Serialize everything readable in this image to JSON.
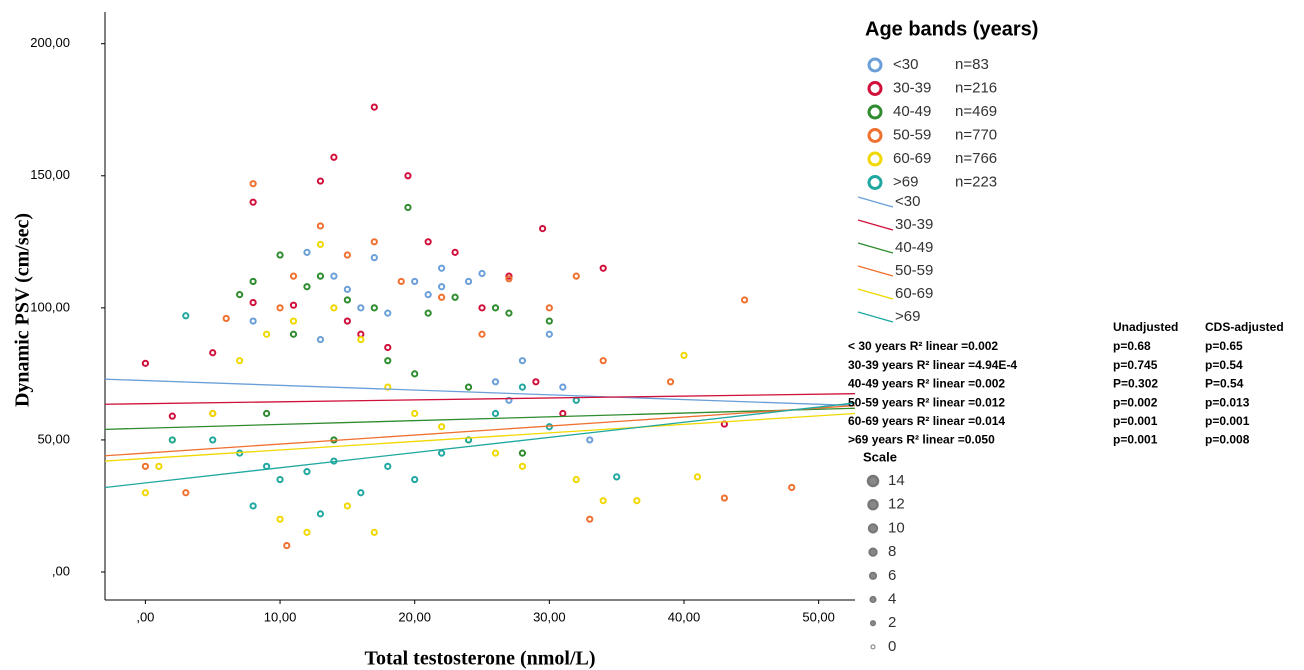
{
  "chart_data": {
    "type": "scatter",
    "y_label": "Dynamic PSV (cm/sec)",
    "x_label": "Total testosterone (nmol/L)",
    "xlim": [
      -3,
      52.7
    ],
    "ylim": [
      -10.6,
      212
    ],
    "xticks": [
      {
        "value": 0,
        "label": ",00"
      },
      {
        "value": 10,
        "label": "10,00"
      },
      {
        "value": 20,
        "label": "20,00"
      },
      {
        "value": 30,
        "label": "30,00"
      },
      {
        "value": 40,
        "label": "40,00"
      },
      {
        "value": 50,
        "label": "50,00"
      }
    ],
    "yticks": [
      {
        "value": 0,
        "label": ",00"
      },
      {
        "value": 50,
        "label": "50,00"
      },
      {
        "value": 100,
        "label": "100,00"
      },
      {
        "value": 150,
        "label": "150,00"
      },
      {
        "value": 200,
        "label": "200,00"
      }
    ],
    "legend_title": "Age bands (years)",
    "series": [
      {
        "name": "<30",
        "n_label": "n=83",
        "color": "#6a9fd8",
        "x": [
          12,
          14,
          16,
          17,
          20,
          22,
          25,
          26,
          28,
          30,
          31,
          33,
          8,
          15,
          24,
          22,
          18,
          27,
          21,
          13
        ],
        "y": [
          121,
          112,
          100,
          119,
          110,
          115,
          113,
          72,
          80,
          90,
          70,
          50,
          95,
          107,
          110,
          108,
          98,
          65,
          105,
          88
        ],
        "fit": {
          "x": [
            -3,
            52.7
          ],
          "y": [
            73,
            63
          ]
        }
      },
      {
        "name": "30-39",
        "n_label": "n=216",
        "color": "#d0103a",
        "x": [
          0,
          5,
          8,
          13,
          14,
          17,
          19.5,
          21,
          23,
          29.5,
          34,
          8,
          11,
          16,
          18,
          25,
          27,
          29,
          31,
          43,
          15,
          2
        ],
        "y": [
          79,
          83,
          140,
          148,
          157,
          176,
          150,
          125,
          121,
          130,
          115,
          102,
          101,
          90,
          85,
          100,
          112,
          72,
          60,
          56,
          95,
          59
        ],
        "fit": {
          "x": [
            -3,
            52.7
          ],
          "y": [
            63.5,
            67.5
          ]
        }
      },
      {
        "name": "40-49",
        "n_label": "n=469",
        "color": "#2e8b2e",
        "x": [
          7,
          8,
          10,
          12,
          13,
          15,
          17,
          19.5,
          21,
          23,
          26,
          27,
          30,
          11,
          18,
          24,
          9,
          14,
          20,
          28
        ],
        "y": [
          105,
          110,
          120,
          108,
          112,
          103,
          100,
          138,
          98,
          104,
          100,
          98,
          95,
          90,
          80,
          70,
          60,
          50,
          75,
          45
        ],
        "fit": {
          "x": [
            -3,
            52.7
          ],
          "y": [
            54,
            62
          ]
        }
      },
      {
        "name": "50-59",
        "n_label": "n=770",
        "color": "#f07030",
        "x": [
          0,
          3,
          5,
          6,
          8,
          10,
          11,
          13,
          15,
          17,
          19,
          22,
          25,
          27,
          30,
          32,
          34,
          39,
          43,
          44.5,
          48,
          10.5,
          33
        ],
        "y": [
          40,
          30,
          60,
          96,
          147,
          100,
          112,
          131,
          120,
          125,
          110,
          104,
          90,
          111,
          100,
          112,
          80,
          72,
          28,
          103,
          32,
          10,
          20
        ],
        "fit": {
          "x": [
            -3,
            52.7
          ],
          "y": [
            44,
            63
          ]
        }
      },
      {
        "name": "60-69",
        "n_label": "n=766",
        "color": "#f0d800",
        "x": [
          0,
          1,
          2,
          5,
          7,
          9,
          11,
          13,
          14,
          16,
          18,
          20,
          22,
          24,
          26,
          28,
          32,
          34,
          36.5,
          40,
          41,
          10,
          12,
          17,
          15
        ],
        "y": [
          30,
          40,
          50,
          60,
          80,
          90,
          95,
          124,
          100,
          88,
          70,
          60,
          55,
          50,
          45,
          40,
          35,
          27,
          27,
          82,
          36,
          20,
          15,
          15,
          25
        ],
        "fit": {
          "x": [
            -3,
            52.7
          ],
          "y": [
            42,
            60
          ]
        }
      },
      {
        "name": ">69",
        "n_label": "n=223",
        "color": "#20a8a0",
        "x": [
          3,
          5,
          7,
          9,
          10,
          12,
          14,
          16,
          18,
          20,
          22,
          24,
          26,
          28,
          30,
          32,
          35,
          2,
          8,
          13
        ],
        "y": [
          97,
          50,
          45,
          40,
          35,
          38,
          42,
          30,
          40,
          35,
          45,
          50,
          60,
          70,
          55,
          65,
          36,
          50,
          25,
          22
        ],
        "fit": {
          "x": [
            -3,
            52.7
          ],
          "y": [
            32,
            64
          ]
        }
      }
    ],
    "stats_table": {
      "headers": [
        "Unadjusted",
        "CDS-adjusted"
      ],
      "rows": [
        {
          "label": "< 30 years R² linear =0.002",
          "unadjusted": "p=0.68",
          "cds_adjusted": "p=0.65"
        },
        {
          "label": "30-39 years R² linear =4.94E-4",
          "unadjusted": "p=0.745",
          "cds_adjusted": "p=0.54"
        },
        {
          "label": "40-49 years R² linear =0.002",
          "unadjusted": "P=0.302",
          "cds_adjusted": "P=0.54"
        },
        {
          "label": "50-59 years R² linear =0.012",
          "unadjusted": "p=0.002",
          "cds_adjusted": "p=0.013"
        },
        {
          "label": "60-69 years R² linear =0.014",
          "unadjusted": "p=0.001",
          "cds_adjusted": "p=0.001"
        },
        {
          "label": ">69 years R² linear =0.050",
          "unadjusted": "p=0.001",
          "cds_adjusted": "p=0.008"
        }
      ]
    },
    "size_scale": {
      "title": "Scale",
      "values": [
        14,
        12,
        10,
        8,
        6,
        4,
        2,
        0
      ]
    }
  }
}
